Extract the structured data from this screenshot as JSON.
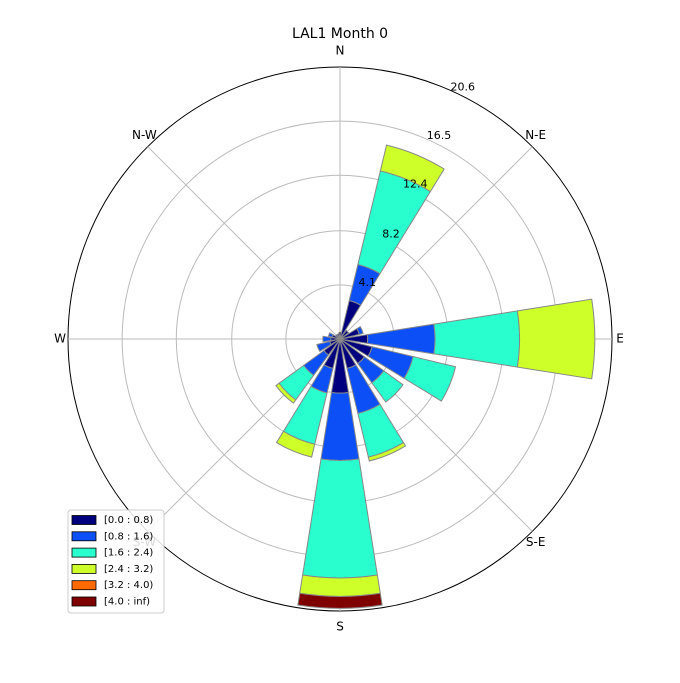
{
  "chart_data": {
    "type": "windrose",
    "title": "LAL1 Month 0",
    "categories": [
      "N",
      null,
      "N-E",
      null,
      "E",
      null,
      "S-E",
      null,
      "S",
      null,
      "S-W",
      null,
      "W",
      null,
      "N-W",
      null
    ],
    "series": [
      {
        "name": "[0.0 : 0.8)",
        "color": "#00007f",
        "values": [
          0.5,
          3.0,
          0.8,
          1.5,
          2.1,
          2.5,
          2.3,
          2.3,
          4.1,
          2.3,
          1.5,
          0.8,
          0.7,
          0.6,
          0.4,
          0.4
        ]
      },
      {
        "name": "[0.8 : 1.6)",
        "color": "#0c4ff6",
        "values": [
          0,
          2.8,
          0,
          0.3,
          5.1,
          3.2,
          1.8,
          3.5,
          5.1,
          1.9,
          1.9,
          1.0,
          0.6,
          0.3,
          0,
          0
        ]
      },
      {
        "name": "[1.6 : 2.4)",
        "color": "#29ffce",
        "values": [
          0,
          7.3,
          0,
          0,
          6.4,
          3.3,
          1.8,
          3.4,
          8.9,
          4.0,
          2.3,
          0,
          0,
          0,
          0,
          0
        ]
      },
      {
        "name": "[2.4 : 3.2)",
        "color": "#ceff29",
        "values": [
          0,
          2.0,
          0,
          0,
          5.7,
          0,
          0,
          0.3,
          1.4,
          1.0,
          0.3,
          0,
          0,
          0,
          0,
          0
        ]
      },
      {
        "name": "[3.2 : 4.0)",
        "color": "#ff6a00",
        "values": [
          0,
          0,
          0,
          0,
          0,
          0,
          0,
          0,
          0,
          0,
          0,
          0,
          0,
          0,
          0,
          0
        ]
      },
      {
        "name": "[4.0 : inf)",
        "color": "#7f0000",
        "values": [
          0,
          0,
          0,
          0,
          0,
          0,
          0,
          0,
          0.9,
          0,
          0,
          0,
          0,
          0,
          0,
          0
        ]
      }
    ],
    "rlim": [
      0,
      20.6
    ],
    "rticks": [
      4.1,
      8.2,
      12.4,
      16.5,
      20.6
    ],
    "grid": true,
    "legend": "lower left"
  }
}
